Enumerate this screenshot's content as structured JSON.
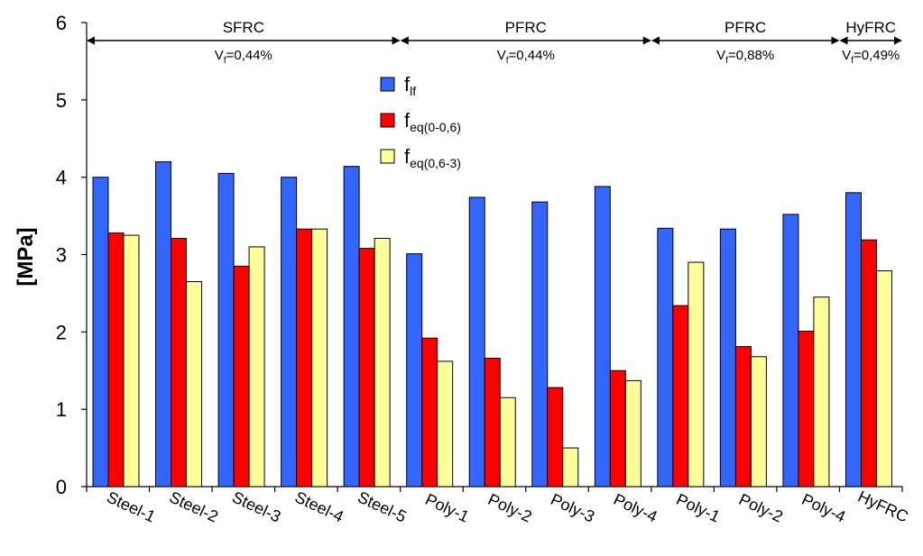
{
  "chart_data": {
    "type": "bar",
    "ylabel": "[MPa]",
    "ylim": [
      0,
      6
    ],
    "yticks": [
      "0",
      "1",
      "2",
      "3",
      "4",
      "5",
      "6"
    ],
    "grid": false,
    "legend_position": "top-center",
    "categories": [
      "Steel-1",
      "Steel-2",
      "Steel-3",
      "Steel-4",
      "Steel-5",
      "Poly-1",
      "Poly-2",
      "Poly-3",
      "Poly-4",
      "Poly-1",
      "Poly-2",
      "Poly-4",
      "HyFRC"
    ],
    "series": [
      {
        "name_main": "f",
        "name_sub": "lf",
        "color": "#3366FF",
        "values": [
          4.0,
          4.2,
          4.05,
          4.0,
          4.14,
          3.01,
          3.74,
          3.68,
          3.88,
          3.34,
          3.33,
          3.52,
          3.8
        ]
      },
      {
        "name_main": "f",
        "name_sub": "eq(0-0,6)",
        "color": "#FF0000",
        "values": [
          3.28,
          3.21,
          2.85,
          3.33,
          3.08,
          1.92,
          1.66,
          1.28,
          1.5,
          2.34,
          1.81,
          2.01,
          3.19
        ]
      },
      {
        "name_main": "f",
        "name_sub": "eq(0,6-3)",
        "color": "#FFFF99",
        "values": [
          3.25,
          2.65,
          3.1,
          3.33,
          3.21,
          1.62,
          1.15,
          0.5,
          1.37,
          2.9,
          1.68,
          2.45,
          2.79
        ]
      }
    ],
    "groups": [
      {
        "label": "SFRC",
        "vf_main": "V",
        "vf_sub": "f",
        "vf_value": "=0,44%",
        "start": 0,
        "end": 5
      },
      {
        "label": "PFRC",
        "vf_main": "V",
        "vf_sub": "f",
        "vf_value": "=0,44%",
        "start": 5,
        "end": 9
      },
      {
        "label": "PFRC",
        "vf_main": "V",
        "vf_sub": "f",
        "vf_value": "=0,88%",
        "start": 9,
        "end": 12
      },
      {
        "label": "HyFRC",
        "vf_main": "V",
        "vf_sub": "f",
        "vf_value": "=0,49%",
        "start": 12,
        "end": 13
      }
    ]
  }
}
